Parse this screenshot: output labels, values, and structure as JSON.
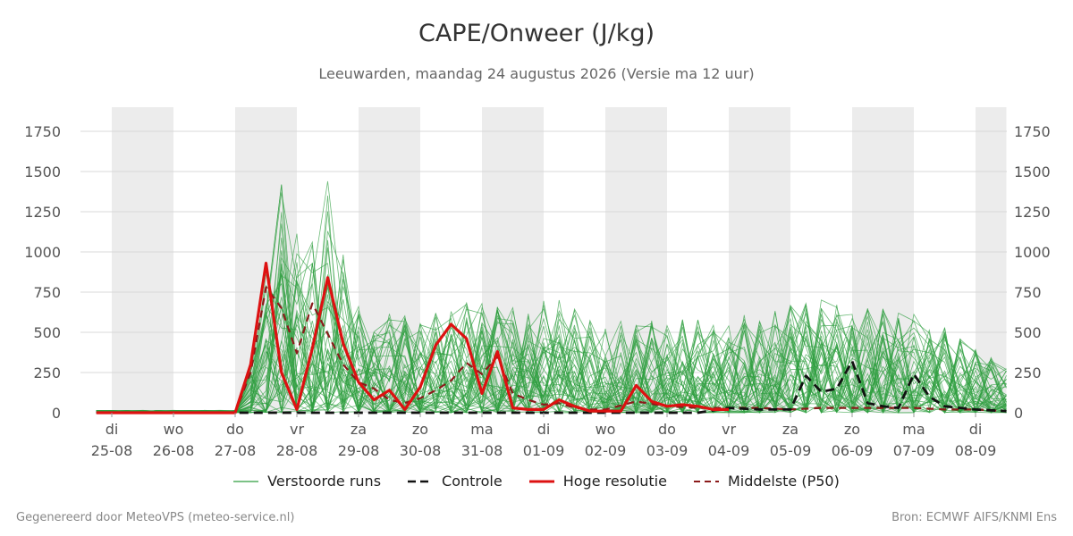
{
  "title": "CAPE/Onweer (J/kg)",
  "subtitle": "Leeuwarden, maandag 24 augustus 2026 (Versie ma 12 uur)",
  "footer": {
    "left": "Gegenereerd door MeteoVPS (meteo-service.nl)",
    "right": "Bron: ECMWF AIFS/KNMI Ens"
  },
  "legend": [
    {
      "label": "Verstoorde runs",
      "color": "#2e9e3f",
      "style": "thin"
    },
    {
      "label": "Controle",
      "color": "#111111",
      "style": "dashed"
    },
    {
      "label": "Hoge resolutie",
      "color": "#dd1111",
      "style": "solid"
    },
    {
      "label": "Middelste (P50)",
      "color": "#8b1a1a",
      "style": "dashed"
    }
  ],
  "chart_data": {
    "type": "line",
    "ylim": [
      0,
      1900
    ],
    "yticks": [
      0,
      250,
      500,
      750,
      1000,
      1250,
      1500,
      1750
    ],
    "xlim": [
      -0.25,
      14.5
    ],
    "grid": true,
    "shaded_days": [
      [
        0,
        1
      ],
      [
        2,
        3
      ],
      [
        4,
        5
      ],
      [
        6,
        7
      ],
      [
        8,
        9
      ],
      [
        10,
        11
      ],
      [
        12,
        13
      ],
      [
        14,
        14.5
      ]
    ],
    "x_ticks": [
      {
        "day": "di",
        "date": "25-08"
      },
      {
        "day": "wo",
        "date": "26-08"
      },
      {
        "day": "do",
        "date": "27-08"
      },
      {
        "day": "vr",
        "date": "28-08"
      },
      {
        "day": "za",
        "date": "29-08"
      },
      {
        "day": "zo",
        "date": "30-08"
      },
      {
        "day": "ma",
        "date": "31-08"
      },
      {
        "day": "di",
        "date": "01-09"
      },
      {
        "day": "wo",
        "date": "02-09"
      },
      {
        "day": "do",
        "date": "03-09"
      },
      {
        "day": "vr",
        "date": "04-09"
      },
      {
        "day": "za",
        "date": "05-09"
      },
      {
        "day": "zo",
        "date": "06-09"
      },
      {
        "day": "ma",
        "date": "07-09"
      },
      {
        "day": "di",
        "date": "08-09"
      }
    ],
    "x_unit_note": "x in days from 25-08 00:00",
    "series": [
      {
        "name": "Hoge resolutie",
        "color": "#dd1111",
        "x": [
          -0.25,
          0,
          0.5,
          1,
          1.5,
          2,
          2.25,
          2.5,
          2.75,
          3,
          3.25,
          3.5,
          3.75,
          4,
          4.25,
          4.5,
          4.75,
          5,
          5.25,
          5.5,
          5.75,
          6,
          6.25,
          6.5,
          6.75,
          7,
          7.25,
          7.5,
          7.75,
          8,
          8.25,
          8.5,
          8.75,
          9,
          9.25,
          9.5,
          9.75,
          10
        ],
        "values": [
          0,
          0,
          0,
          0,
          0,
          0,
          300,
          930,
          250,
          20,
          400,
          840,
          430,
          190,
          80,
          140,
          20,
          160,
          420,
          550,
          460,
          120,
          380,
          30,
          20,
          20,
          80,
          40,
          10,
          10,
          10,
          170,
          70,
          40,
          50,
          40,
          20,
          20
        ]
      },
      {
        "name": "Controle",
        "color": "#111111",
        "x": [
          -0.25,
          0,
          0.5,
          1,
          1.5,
          2,
          2.25,
          2.5,
          2.75,
          3,
          3.25,
          3.5,
          3.75,
          4,
          4.5,
          5,
          5.5,
          6,
          6.5,
          7,
          7.5,
          8,
          8.5,
          9,
          9.5,
          10,
          10.5,
          11,
          11.25,
          11.5,
          11.75,
          12,
          12.25,
          12.5,
          12.75,
          13,
          13.25,
          13.5,
          14,
          14.5
        ],
        "values": [
          0,
          0,
          0,
          0,
          0,
          0,
          0,
          0,
          0,
          0,
          0,
          0,
          0,
          0,
          0,
          0,
          0,
          0,
          0,
          0,
          0,
          0,
          0,
          0,
          0,
          30,
          20,
          20,
          230,
          130,
          150,
          320,
          60,
          40,
          30,
          240,
          100,
          40,
          20,
          10
        ]
      },
      {
        "name": "Middelste (P50)",
        "color": "#8b1a1a",
        "x": [
          -0.25,
          0,
          0.5,
          1,
          1.5,
          2,
          2.25,
          2.5,
          2.75,
          3,
          3.25,
          3.5,
          3.75,
          4,
          4.25,
          4.5,
          4.75,
          5,
          5.25,
          5.5,
          5.75,
          6,
          6.25,
          6.5,
          6.75,
          7,
          7.25,
          7.5,
          7.75,
          8,
          8.5,
          9,
          9.5,
          10,
          10.5,
          11,
          11.5,
          12,
          12.5,
          13,
          13.5,
          14,
          14.5
        ],
        "values": [
          0,
          0,
          0,
          0,
          0,
          0,
          250,
          780,
          650,
          370,
          680,
          490,
          300,
          190,
          150,
          80,
          60,
          90,
          140,
          200,
          310,
          240,
          350,
          120,
          80,
          50,
          60,
          30,
          20,
          20,
          70,
          40,
          30,
          30,
          30,
          20,
          30,
          30,
          30,
          30,
          20,
          20,
          10
        ]
      }
    ]
  }
}
